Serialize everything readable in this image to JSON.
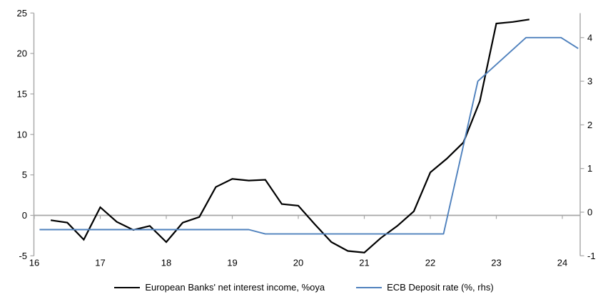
{
  "chart_data": {
    "type": "line",
    "title": "",
    "x_axis": {
      "tick_labels": [
        "16",
        "17",
        "18",
        "19",
        "20",
        "21",
        "22",
        "23",
        "24"
      ],
      "tick_values": [
        16,
        17,
        18,
        19,
        20,
        21,
        22,
        23,
        24
      ],
      "range": [
        16,
        24.28
      ]
    },
    "left_axis": {
      "tick_values": [
        -5,
        0,
        5,
        10,
        15,
        20,
        25
      ],
      "range": [
        -5,
        25
      ],
      "zero_line": true
    },
    "right_axis": {
      "tick_values": [
        -1,
        0,
        1,
        2,
        3,
        4
      ],
      "range": [
        -1,
        4.6
      ]
    },
    "legend_position": "bottom",
    "grid": "zero-line-only",
    "series": [
      {
        "name": "European Banks' net interest income, %oya",
        "axis": "left",
        "color": "#000000",
        "x": [
          16.25,
          16.5,
          16.75,
          17.0,
          17.25,
          17.5,
          17.75,
          18.0,
          18.25,
          18.5,
          18.75,
          19.0,
          19.25,
          19.5,
          19.75,
          20.0,
          20.25,
          20.5,
          20.75,
          21.0,
          21.25,
          21.5,
          21.75,
          22.0,
          22.25,
          22.5,
          22.75,
          23.0,
          23.25,
          23.5
        ],
        "values": [
          -0.6,
          -0.9,
          -3.0,
          1.0,
          -0.8,
          -1.8,
          -1.3,
          -3.3,
          -0.9,
          -0.2,
          3.5,
          4.5,
          4.3,
          4.4,
          1.4,
          1.2,
          -1.1,
          -3.3,
          -4.4,
          -4.6,
          -2.8,
          -1.3,
          0.5,
          5.3,
          7.0,
          9.0,
          14.1,
          23.7,
          23.9,
          24.2
        ]
      },
      {
        "name": "ECB Deposit rate (%, rhs)",
        "axis": "right",
        "color": "#4f81bd",
        "x": [
          16.08,
          19.25,
          19.5,
          22.2,
          22.72,
          23.45,
          23.98,
          24.24
        ],
        "values": [
          -0.4,
          -0.4,
          -0.5,
          -0.5,
          3.0,
          4.0,
          4.0,
          3.75
        ]
      }
    ]
  },
  "colors": {
    "axis": "#a6a6a6",
    "zero_line": "#a6a6a6",
    "text": "#000000",
    "background": "#ffffff",
    "series_nii": "#000000",
    "series_ecb": "#4f81bd"
  }
}
